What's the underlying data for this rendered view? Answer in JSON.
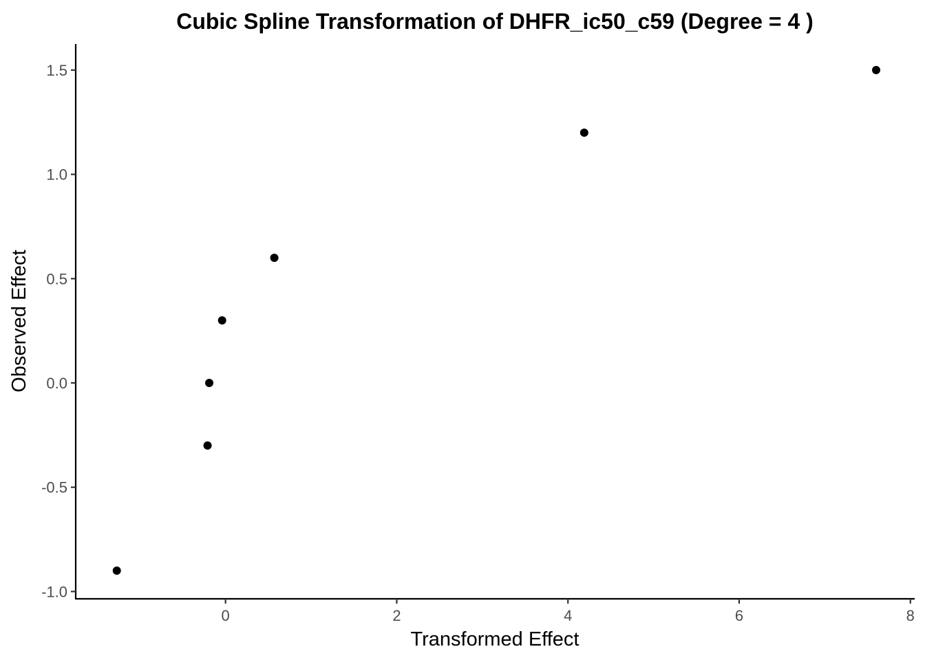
{
  "chart_data": {
    "type": "scatter",
    "title": "Cubic Spline Transformation of DHFR_ic50_c59 (Degree = 4 )",
    "xlabel": "Transformed Effect",
    "ylabel": "Observed Effect",
    "xlim": [
      -1.75,
      8.05
    ],
    "ylim": [
      -1.035,
      1.625
    ],
    "x_ticks": [
      0,
      2,
      4,
      6,
      8
    ],
    "x_tick_labels": [
      "0",
      "2",
      "4",
      "6",
      "8"
    ],
    "y_ticks": [
      -1.0,
      -0.5,
      0.0,
      0.5,
      1.0,
      1.5
    ],
    "y_tick_labels": [
      "-1.0",
      "-0.5",
      "0.0",
      "0.5",
      "1.0",
      "1.5"
    ],
    "grid": false,
    "legend": "none",
    "point_color": "#000000",
    "points": [
      {
        "x": -1.27,
        "y": -0.9
      },
      {
        "x": -0.21,
        "y": -0.3
      },
      {
        "x": -0.19,
        "y": 0.0
      },
      {
        "x": -0.04,
        "y": 0.3
      },
      {
        "x": 0.57,
        "y": 0.6
      },
      {
        "x": 4.19,
        "y": 1.2
      },
      {
        "x": 7.6,
        "y": 1.5
      }
    ]
  }
}
